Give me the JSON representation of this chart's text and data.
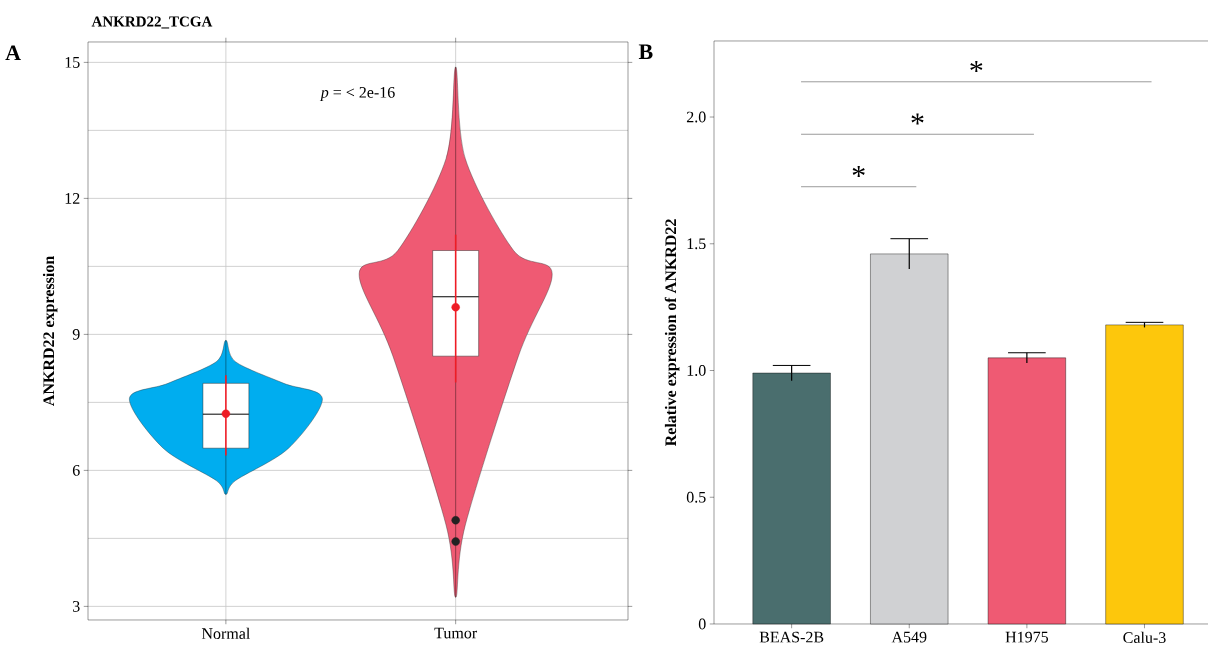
{
  "chart_data": [
    {
      "type": "box",
      "title": "ANKRD22_TCGA",
      "ylabel": "ANKRD22 expression",
      "categories": [
        "Normal",
        "Tumor"
      ],
      "boxes": [
        {
          "low": 5.47,
          "q1": 6.49,
          "median": 7.24,
          "q3": 7.92,
          "high": 8.87
        },
        {
          "low": 3.2,
          "q1": 8.52,
          "median": 9.83,
          "q3": 10.85,
          "high": 14.9
        }
      ],
      "series": [
        {
          "type": "scatter",
          "x": [
            "Normal",
            "Tumor"
          ],
          "values": [
            7.25,
            9.6
          ],
          "errors": [
            [
              6.33,
              8.1
            ],
            [
              7.94,
              11.2
            ]
          ],
          "color": "#ee1c25",
          "marker": "circle"
        },
        {
          "type": "scatter",
          "x": [
            "Tumor",
            "Tumor"
          ],
          "values": [
            4.9,
            4.43
          ],
          "color": "#222222",
          "marker": "circle"
        }
      ],
      "ylim": [
        2.7,
        15.45
      ],
      "yticks": [
        3,
        6,
        9,
        12,
        15
      ],
      "grid": true,
      "annotations": [
        "A",
        "*p* = < 2e-16"
      ]
    },
    {
      "type": "bar",
      "ylabel": "Relative expression of ANKRD22",
      "categories": [
        "BEAS-2B",
        "A549",
        "H1975",
        "Calu-3"
      ],
      "values": [
        0.99,
        1.46,
        1.05,
        1.18
      ],
      "errors": [
        0.03,
        0.06,
        0.02,
        0.01
      ],
      "colors": [
        "#4a6e6e",
        "#d0d1d3",
        "#ef5a73",
        "#fdc70c"
      ],
      "ylim": [
        0,
        2.3
      ],
      "yticks": [
        0,
        0.5,
        {
          "value": 1,
          "label": "1.0"
        },
        1.5,
        {
          "value": 2,
          "label": "2.0"
        }
      ],
      "annotations": [
        "B",
        "*",
        "*",
        "*"
      ]
    }
  ]
}
